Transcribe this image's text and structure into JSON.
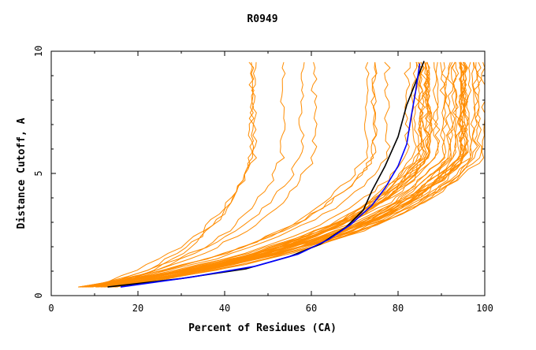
{
  "chart_data": {
    "type": "line",
    "title": "R0949",
    "xlabel": "Percent of Residues (CA)",
    "ylabel": "Distance Cutoff, A",
    "xlim": [
      0,
      100
    ],
    "ylim": [
      0,
      10
    ],
    "x_ticks": [
      "0",
      "20",
      "40",
      "60",
      "80",
      "100"
    ],
    "y_ticks": [
      "0",
      "5",
      "10"
    ],
    "grid": false,
    "legend": "none",
    "colors": {
      "background_models": "#ff8c00",
      "black_model": "#000000",
      "blue_model": "#0000ff",
      "frame": "#000000"
    },
    "highlight_series": [
      {
        "color": "#000000",
        "x": [
          13,
          30,
          45,
          55,
          62,
          68,
          72,
          74,
          77,
          80,
          82,
          84,
          86
        ],
        "y": [
          0.35,
          0.7,
          1.1,
          1.6,
          2.1,
          2.8,
          3.5,
          4.3,
          5.3,
          6.5,
          7.8,
          8.7,
          9.6
        ]
      },
      {
        "color": "#0000ff",
        "x": [
          16,
          32,
          47,
          57,
          64,
          69,
          74,
          77,
          80,
          82,
          83,
          84,
          85
        ],
        "y": [
          0.35,
          0.75,
          1.2,
          1.7,
          2.3,
          2.9,
          3.7,
          4.4,
          5.3,
          6.2,
          7.3,
          8.3,
          9.5
        ]
      }
    ],
    "background_series_count": 48
  }
}
